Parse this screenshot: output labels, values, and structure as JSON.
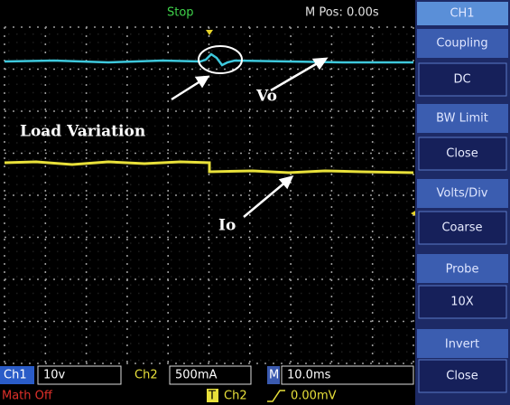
{
  "header": {
    "status": "Stop",
    "position": "M Pos: 0.00s"
  },
  "menu": {
    "title": "CH1",
    "items": [
      {
        "label": "Coupling",
        "value": "DC"
      },
      {
        "label": "BW  Limit",
        "value": "Close"
      },
      {
        "label": "Volts/Div",
        "value": "Coarse"
      },
      {
        "label": "Probe",
        "value": "10X"
      },
      {
        "label": "Invert",
        "value": "Close"
      }
    ]
  },
  "annotations": {
    "load": "Load Variation",
    "vo": "Vo",
    "io": "Io"
  },
  "footer": {
    "ch1": "Ch1",
    "ch1_scale": "10v",
    "ch2": "Ch2",
    "ch2_scale": "500mA",
    "m": "M",
    "timebase": "10.0ms",
    "math": "Math  Off",
    "trigger": "T",
    "trigger_source": "Ch2",
    "trigger_level": "0.00mV"
  }
}
